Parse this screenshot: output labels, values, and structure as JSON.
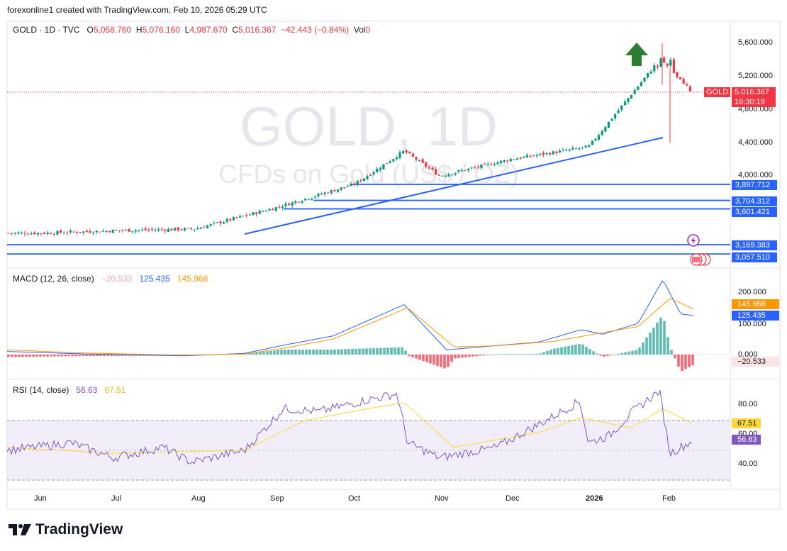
{
  "attribution": "forexonline1 created with TradingView.com, Feb 10, 2026 05:29 UTC",
  "legend": {
    "symbol": "GOLD · 1D · TVC",
    "o_label": "O",
    "o": "5,058.760",
    "h_label": "H",
    "h": "5,076.160",
    "l_label": "L",
    "l": "4,987.670",
    "c_label": "C",
    "c": "5,016.367",
    "change": "−42.443 (−0.84%)",
    "vol_label": "Vol",
    "vol": "0"
  },
  "watermark": {
    "title": "GOLD, 1D",
    "subtitle": "CFDs on Gold (US$ / OZ)"
  },
  "price_tag": {
    "symbol": "GOLD",
    "price": "5,016.367",
    "countdown": "16:30:19"
  },
  "price_axis": [
    "5,600.000",
    "5,200.000",
    "4,800.000",
    "4,400.000",
    "4,000.000"
  ],
  "levels": [
    "3,897.712",
    "3,704.312",
    "3,601.421",
    "3,169.383",
    "3,057.510"
  ],
  "macd": {
    "title": "MACD (12, 26, close)",
    "hist_value": "−20.533",
    "macd_value": "125.435",
    "signal_value": "145.968",
    "axis": [
      "200.000",
      "100.000",
      "0.000"
    ],
    "tag_signal": "145.968",
    "tag_macd": "125.435",
    "tag_hist": "−20.533"
  },
  "rsi": {
    "title": "RSI (14, close)",
    "rsi_value": "56.63",
    "ma_value": "67.51",
    "axis": [
      "80.00",
      "60.00",
      "40.00"
    ],
    "tag_ma": "67.51",
    "tag_rsi": "56.63"
  },
  "time_axis": [
    "Jun",
    "Jul",
    "Aug",
    "Sep",
    "Oct",
    "Nov",
    "Dec",
    "2026",
    "Feb"
  ],
  "footer": {
    "brand": "TradingView"
  },
  "colors": {
    "up": "#089981",
    "down": "#f23645",
    "line": "#2962ff",
    "signal": "#ff9800",
    "rsi": "#7e57c2",
    "rsi_ma": "#fdd835",
    "arrow": "#2e7d32"
  },
  "chart_data": {
    "type": "candlestick",
    "instrument": "GOLD",
    "timeframe": "1D",
    "price_ylim": [
      3000,
      5700
    ],
    "price_close_by_month": [
      {
        "x": "Jun",
        "close": 3310
      },
      {
        "x": "Jul",
        "close": 3340
      },
      {
        "x": "Aug",
        "close": 3360
      },
      {
        "x": "Sep",
        "close": 3620
      },
      {
        "x": "Oct",
        "close": 3900
      },
      {
        "x": "Oct (mid)",
        "close": 4300
      },
      {
        "x": "Nov",
        "close": 4000
      },
      {
        "x": "Dec",
        "close": 4200
      },
      {
        "x": "2026",
        "close": 4350
      },
      {
        "x": "Jan (late)",
        "close": 5400
      },
      {
        "x": "Feb",
        "close": 5016.367
      }
    ],
    "last_bar": {
      "open": 5058.76,
      "high": 5076.16,
      "low": 4987.67,
      "close": 5016.367
    },
    "recent_high": 5600,
    "recent_low": 4400,
    "horizontal_levels": [
      3897.712,
      3704.312,
      3601.421,
      3169.383,
      3057.51
    ],
    "macd": {
      "params": [
        12,
        26
      ],
      "macd": 125.435,
      "signal": 145.968,
      "histogram": -20.533,
      "peak": 240,
      "ylim": [
        -60,
        260
      ]
    },
    "rsi": {
      "period": 14,
      "rsi": 56.63,
      "rsi_ma": 67.51,
      "bands": [
        70,
        30
      ],
      "ylim": [
        25,
        95
      ]
    }
  }
}
